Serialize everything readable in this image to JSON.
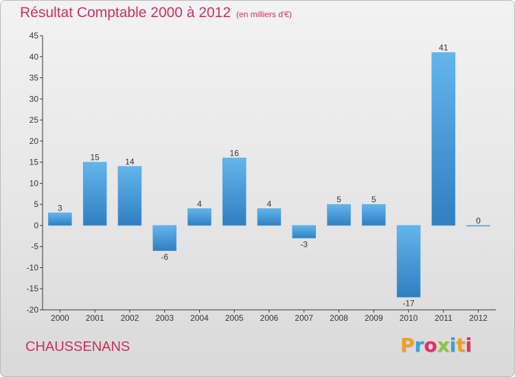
{
  "title": "Résultat Comptable 2000 à 2012",
  "unit": "(en milliers d'€)",
  "commune": "CHAUSSENANS",
  "logo": {
    "letters": [
      "P",
      "r",
      "o",
      "x",
      "i",
      "t",
      "i"
    ],
    "colors": [
      "#f0a020",
      "#3aa0d8",
      "#e0306a",
      "#8cc63e",
      "#3aa0d8",
      "#f0a020",
      "#e0306a"
    ]
  },
  "chart_data": {
    "type": "bar",
    "title": "Résultat Comptable 2000 à 2012",
    "categories": [
      "2000",
      "2001",
      "2002",
      "2003",
      "2004",
      "2005",
      "2006",
      "2007",
      "2008",
      "2009",
      "2010",
      "2011",
      "2012"
    ],
    "values": [
      3,
      15,
      14,
      -6,
      4,
      16,
      4,
      -3,
      5,
      5,
      -17,
      41,
      0
    ],
    "ylim": [
      -20,
      45
    ],
    "yticks": [
      -20,
      -15,
      -10,
      -5,
      0,
      5,
      10,
      15,
      20,
      25,
      30,
      35,
      40,
      45
    ],
    "grid": false,
    "colors": {
      "bar_top": "#62b6ec",
      "bar_bottom": "#2f7fc1",
      "axis": "#333333"
    }
  }
}
